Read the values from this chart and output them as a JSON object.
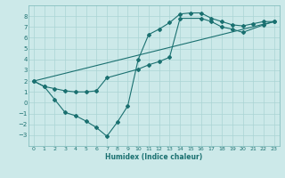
{
  "xlabel": "Humidex (Indice chaleur)",
  "bg_color": "#cce9e9",
  "grid_color": "#aad4d4",
  "line_color": "#1a7070",
  "spine_color": "#7ab8b8",
  "xlim": [
    -0.5,
    23.5
  ],
  "ylim": [
    -4,
    9
  ],
  "xticks": [
    0,
    1,
    2,
    3,
    4,
    5,
    6,
    7,
    8,
    9,
    10,
    11,
    12,
    13,
    14,
    15,
    16,
    17,
    18,
    19,
    20,
    21,
    22,
    23
  ],
  "yticks": [
    -3,
    -2,
    -1,
    0,
    1,
    2,
    3,
    4,
    5,
    6,
    7,
    8
  ],
  "line1_x": [
    0,
    1,
    2,
    3,
    4,
    5,
    6,
    7,
    8,
    9,
    10,
    11,
    12,
    13,
    14,
    15,
    16,
    17,
    18,
    19,
    20,
    21,
    22,
    23
  ],
  "line1_y": [
    2.0,
    1.5,
    0.3,
    -0.9,
    -1.2,
    -1.7,
    -2.3,
    -3.1,
    -1.8,
    -0.3,
    4.0,
    6.3,
    6.8,
    7.4,
    8.2,
    8.3,
    8.3,
    7.8,
    7.5,
    7.2,
    7.1,
    7.3,
    7.5,
    7.5
  ],
  "line2_x": [
    0,
    1,
    2,
    3,
    4,
    5,
    6,
    7,
    10,
    11,
    12,
    13,
    14,
    16,
    17,
    18,
    19,
    20,
    22,
    23
  ],
  "line2_y": [
    2.0,
    1.5,
    1.3,
    1.1,
    1.0,
    1.0,
    1.1,
    2.3,
    3.1,
    3.5,
    3.8,
    4.2,
    7.8,
    7.8,
    7.5,
    7.0,
    6.8,
    6.5,
    7.2,
    7.5
  ],
  "line3_x": [
    0,
    23
  ],
  "line3_y": [
    2.0,
    7.5
  ]
}
